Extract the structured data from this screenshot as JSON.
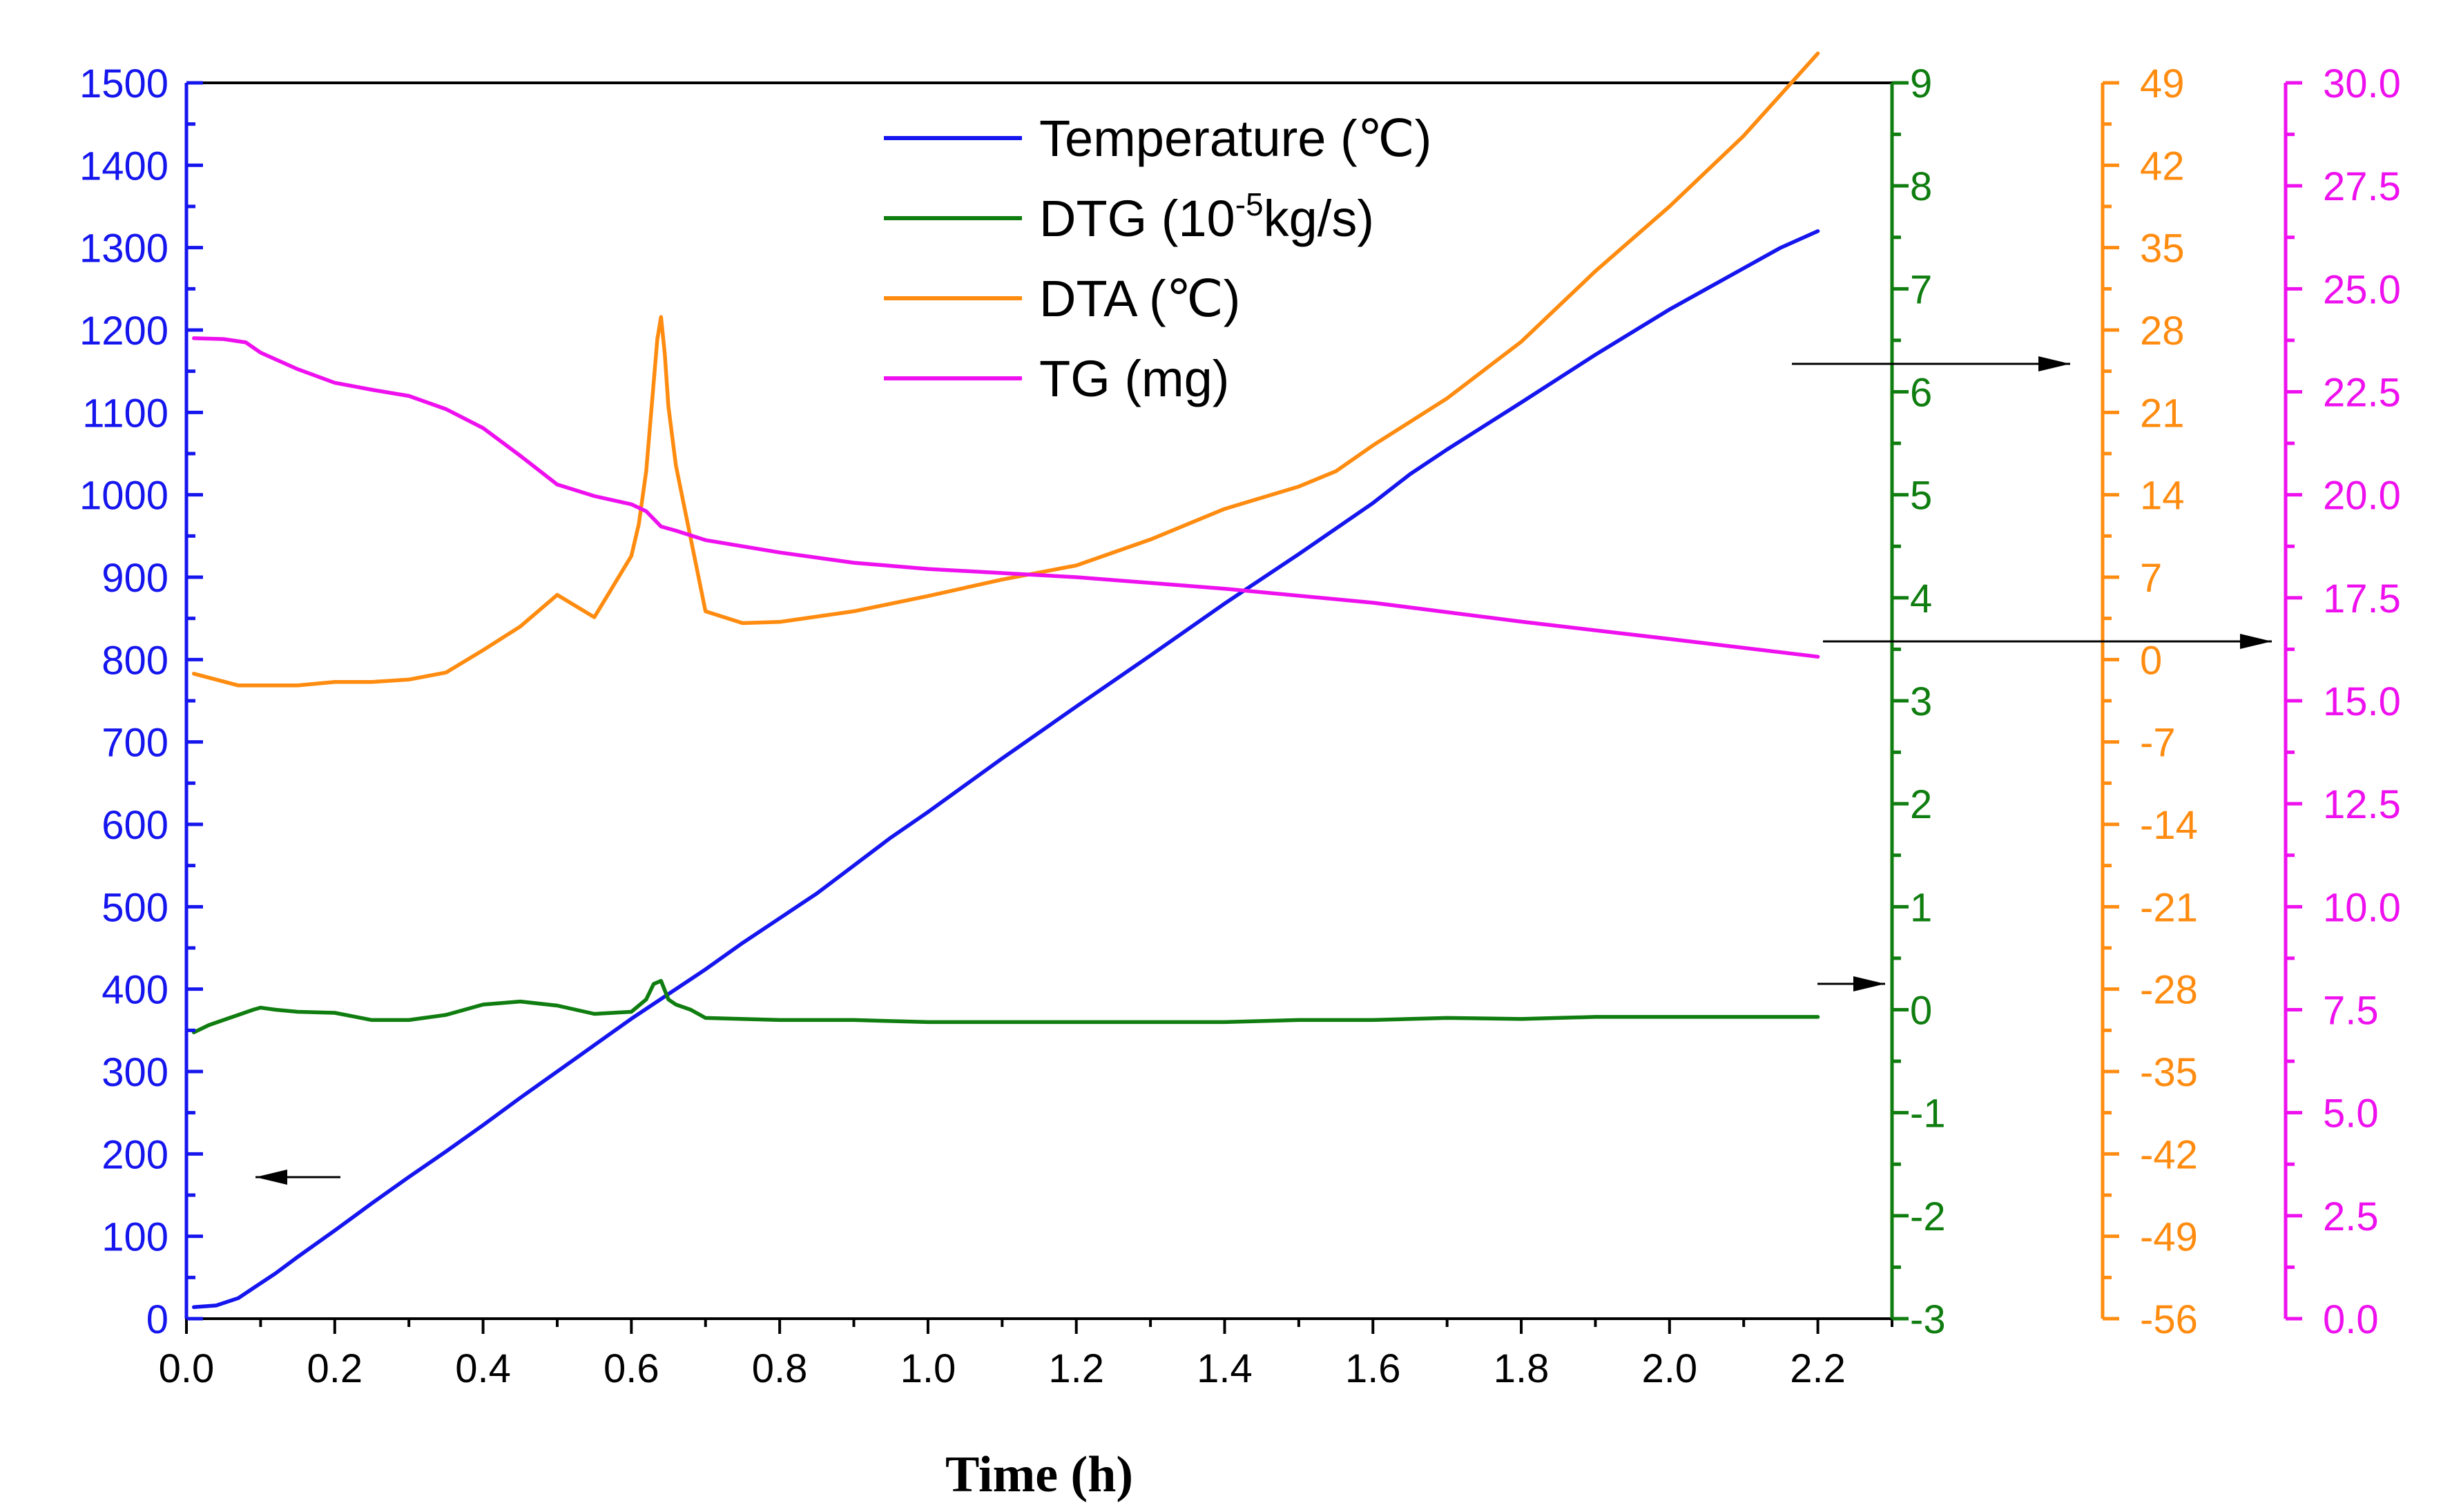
{
  "chart_data": {
    "type": "line",
    "xlabel": "Time (h)",
    "xlim": [
      0,
      2.3
    ],
    "xticks": [
      "0.0",
      "0.2",
      "0.4",
      "0.6",
      "0.8",
      "1.0",
      "1.2",
      "1.4",
      "1.6",
      "1.8",
      "2.0",
      "2.2"
    ],
    "axes": {
      "temperature": {
        "ylim": [
          0,
          1500
        ],
        "ticks": [
          "0",
          "100",
          "200",
          "300",
          "400",
          "500",
          "600",
          "700",
          "800",
          "900",
          "1000",
          "1100",
          "1200",
          "1300",
          "1400",
          "1500"
        ],
        "color": "#1515ee"
      },
      "dtg": {
        "ylim": [
          -3,
          9
        ],
        "ticks": [
          "-3",
          "-2",
          "-1",
          "0",
          "1",
          "2",
          "3",
          "4",
          "5",
          "6",
          "7",
          "8",
          "9"
        ],
        "color": "#0f7d0f"
      },
      "dta": {
        "ylim": [
          -56,
          49
        ],
        "ticks": [
          "-56",
          "-49",
          "-42",
          "-35",
          "-28",
          "-21",
          "-14",
          "-7",
          "0",
          "7",
          "14",
          "21",
          "28",
          "35",
          "42",
          "49"
        ],
        "color": "#ff8c10"
      },
      "tg": {
        "ylim": [
          0,
          30
        ],
        "ticks": [
          "0.0",
          "2.5",
          "5.0",
          "7.5",
          "10.0",
          "12.5",
          "15.0",
          "17.5",
          "20.0",
          "22.5",
          "25.0",
          "27.5",
          "30.0"
        ],
        "color": "#ee10ee"
      }
    },
    "legend": {
      "placement": "top-center",
      "entries": [
        {
          "label_pre": "Temperature (",
          "label_sup": "",
          "label_post": "℃)",
          "axis": "temperature"
        },
        {
          "label_pre": "DTG (10",
          "label_sup": "-5",
          "label_post": "kg/s)",
          "axis": "dtg"
        },
        {
          "label_pre": "DTA (",
          "label_sup": "",
          "label_post": "℃)",
          "axis": "dta"
        },
        {
          "label_pre": "TG (mg)",
          "label_sup": "",
          "label_post": "",
          "axis": "tg"
        }
      ]
    },
    "series": [
      {
        "axis": "temperature",
        "x": [
          0.01,
          0.04,
          0.07,
          0.09,
          0.1,
          0.12,
          0.15,
          0.2,
          0.25,
          0.3,
          0.35,
          0.4,
          0.45,
          0.5,
          0.55,
          0.6,
          0.65,
          0.7,
          0.75,
          0.8,
          0.85,
          0.9,
          0.95,
          1.0,
          1.1,
          1.2,
          1.3,
          1.4,
          1.5,
          1.6,
          1.65,
          1.7,
          1.8,
          1.9,
          2.0,
          2.05,
          2.1,
          2.15,
          2.2
        ],
        "y": [
          14,
          16,
          25,
          37,
          43,
          55,
          75,
          107,
          140,
          172,
          203,
          235,
          268,
          300,
          332,
          364,
          394,
          424,
          456,
          486,
          516,
          550,
          584,
          615,
          680,
          743,
          805,
          868,
          928,
          990,
          1025,
          1055,
          1112,
          1170,
          1225,
          1250,
          1275,
          1300,
          1320
        ]
      },
      {
        "axis": "dtg",
        "x": [
          0.01,
          0.03,
          0.05,
          0.07,
          0.09,
          0.1,
          0.12,
          0.15,
          0.2,
          0.25,
          0.3,
          0.35,
          0.4,
          0.45,
          0.5,
          0.55,
          0.6,
          0.62,
          0.63,
          0.64,
          0.65,
          0.66,
          0.68,
          0.7,
          0.8,
          0.9,
          1.0,
          1.1,
          1.2,
          1.3,
          1.4,
          1.5,
          1.6,
          1.7,
          1.8,
          1.9,
          2.0,
          2.1,
          2.2
        ],
        "y": [
          -0.22,
          -0.15,
          -0.1,
          -0.05,
          0.0,
          0.02,
          0.0,
          -0.02,
          -0.03,
          -0.1,
          -0.1,
          -0.05,
          0.05,
          0.08,
          0.04,
          -0.04,
          -0.02,
          0.1,
          0.25,
          0.28,
          0.1,
          0.05,
          0.0,
          -0.08,
          -0.1,
          -0.1,
          -0.12,
          -0.12,
          -0.12,
          -0.12,
          -0.12,
          -0.1,
          -0.1,
          -0.08,
          -0.09,
          -0.07,
          -0.07,
          -0.07,
          -0.07
        ]
      },
      {
        "axis": "dta",
        "x": [
          0.01,
          0.04,
          0.07,
          0.1,
          0.15,
          0.2,
          0.25,
          0.3,
          0.35,
          0.4,
          0.45,
          0.5,
          0.55,
          0.6,
          0.61,
          0.62,
          0.63,
          0.635,
          0.64,
          0.645,
          0.65,
          0.66,
          0.7,
          0.75,
          0.8,
          0.9,
          1.0,
          1.1,
          1.2,
          1.3,
          1.4,
          1.5,
          1.55,
          1.6,
          1.7,
          1.8,
          1.9,
          2.0,
          2.1,
          2.2
        ],
        "y": [
          -1.2,
          -1.7,
          -2.2,
          -2.2,
          -2.2,
          -1.9,
          -1.9,
          -1.7,
          -1.1,
          0.8,
          2.8,
          5.5,
          3.6,
          8.8,
          11.5,
          16,
          23.5,
          27.2,
          29.1,
          26,
          21.5,
          16.5,
          4.1,
          3.1,
          3.2,
          4.1,
          5.4,
          6.8,
          8.0,
          10.2,
          12.8,
          14.7,
          16.0,
          18.2,
          22.2,
          27.0,
          33.0,
          38.5,
          44.5,
          51.5
        ]
      },
      {
        "axis": "tg",
        "x": [
          0.01,
          0.05,
          0.08,
          0.1,
          0.15,
          0.2,
          0.25,
          0.3,
          0.35,
          0.4,
          0.45,
          0.5,
          0.55,
          0.6,
          0.62,
          0.64,
          0.66,
          0.7,
          0.8,
          0.9,
          1.0,
          1.2,
          1.4,
          1.6,
          1.8,
          2.0,
          2.2
        ],
        "y": [
          23.8,
          23.78,
          23.7,
          23.45,
          23.05,
          22.72,
          22.55,
          22.4,
          22.08,
          21.62,
          20.95,
          20.25,
          19.97,
          19.77,
          19.6,
          19.23,
          19.13,
          18.9,
          18.6,
          18.35,
          18.2,
          18.0,
          17.72,
          17.38,
          16.92,
          16.5,
          16.07
        ]
      }
    ]
  }
}
